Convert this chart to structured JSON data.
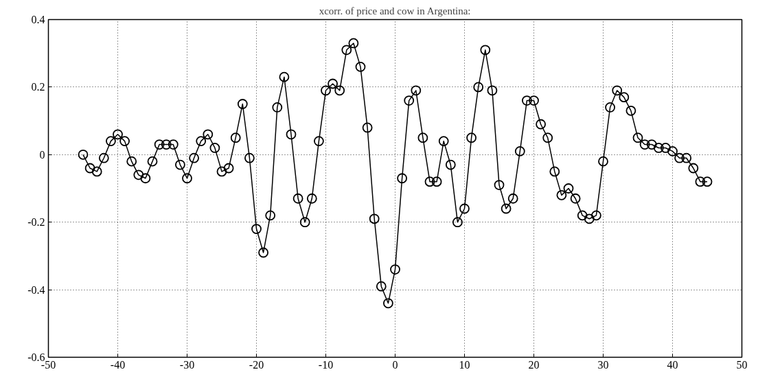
{
  "chart_data": {
    "type": "line",
    "title": "xcorr. of price and cow in Argentina:",
    "x": [
      -45,
      -44,
      -43,
      -42,
      -41,
      -40,
      -39,
      -38,
      -37,
      -36,
      -35,
      -34,
      -33,
      -32,
      -31,
      -30,
      -29,
      -28,
      -27,
      -26,
      -25,
      -24,
      -23,
      -22,
      -21,
      -20,
      -19,
      -18,
      -17,
      -16,
      -15,
      -14,
      -13,
      -12,
      -11,
      -10,
      -9,
      -8,
      -7,
      -6,
      -5,
      -4,
      -3,
      -2,
      -1,
      0,
      1,
      2,
      3,
      4,
      5,
      6,
      7,
      8,
      9,
      10,
      11,
      12,
      13,
      14,
      15,
      16,
      17,
      18,
      19,
      20,
      21,
      22,
      23,
      24,
      25,
      26,
      27,
      28,
      29,
      30,
      31,
      32,
      33,
      34,
      35,
      36,
      37,
      38,
      39,
      40,
      41,
      42,
      43,
      44,
      45
    ],
    "series": [
      {
        "color": "#000000",
        "values": [
          0.0,
          -0.04,
          -0.05,
          -0.01,
          0.04,
          0.06,
          0.04,
          -0.02,
          -0.06,
          -0.07,
          -0.02,
          0.03,
          0.03,
          0.03,
          -0.03,
          -0.07,
          -0.01,
          0.04,
          0.06,
          0.02,
          -0.05,
          -0.04,
          0.05,
          0.15,
          -0.01,
          -0.22,
          -0.29,
          -0.18,
          0.14,
          0.23,
          0.06,
          -0.13,
          -0.2,
          -0.13,
          0.04,
          0.19,
          0.21,
          0.19,
          0.31,
          0.33,
          0.26,
          0.08,
          -0.19,
          -0.39,
          -0.44,
          -0.34,
          -0.07,
          0.16,
          0.19,
          0.05,
          -0.08,
          -0.08,
          0.04,
          -0.03,
          -0.2,
          -0.16,
          0.05,
          0.2,
          0.31,
          0.19,
          -0.09,
          -0.16,
          -0.13,
          0.01,
          0.16,
          0.16,
          0.09,
          0.05,
          -0.05,
          -0.12,
          -0.1,
          -0.13,
          -0.18,
          -0.19,
          -0.18,
          -0.02,
          0.14,
          0.19,
          0.17,
          0.13,
          0.05,
          0.03,
          0.03,
          0.02,
          0.02,
          0.01,
          -0.01,
          -0.01,
          -0.04,
          -0.08,
          -0.08
        ]
      }
    ],
    "xlim": [
      -50,
      50
    ],
    "ylim": [
      -0.6,
      0.4
    ],
    "xticks": [
      -50,
      -40,
      -30,
      -20,
      -10,
      0,
      10,
      20,
      30,
      40,
      50
    ],
    "yticks": [
      -0.6,
      -0.4,
      -0.2,
      0,
      0.2,
      0.4
    ],
    "grid": true,
    "marker": "circle",
    "line_style": "solid"
  }
}
